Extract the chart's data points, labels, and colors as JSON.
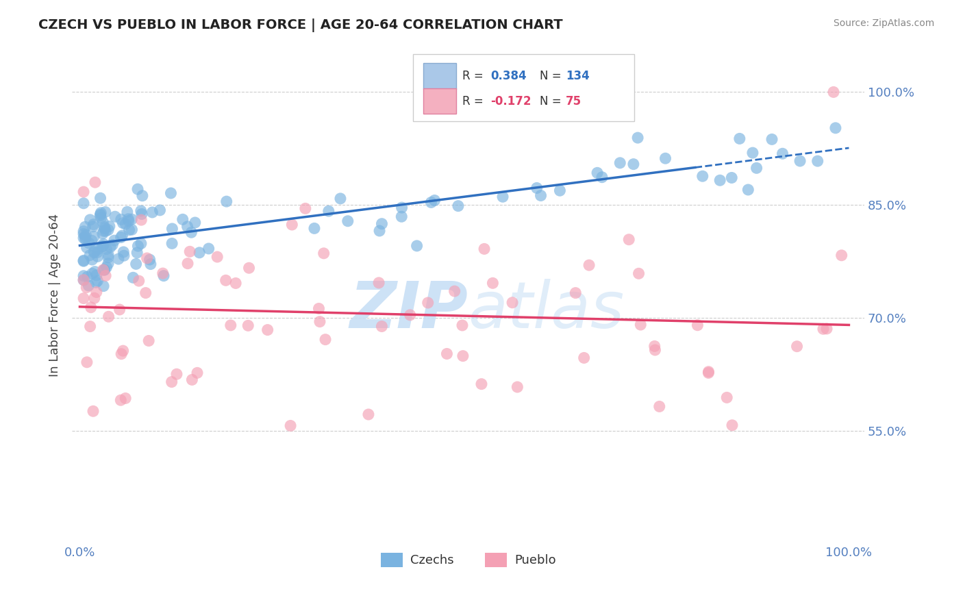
{
  "title": "CZECH VS PUEBLO IN LABOR FORCE | AGE 20-64 CORRELATION CHART",
  "source": "Source: ZipAtlas.com",
  "ylabel": "In Labor Force | Age 20-64",
  "xlim": [
    -0.01,
    1.02
  ],
  "ylim": [
    0.4,
    1.06
  ],
  "yticks": [
    0.55,
    0.7,
    0.85,
    1.0
  ],
  "ytick_labels": [
    "55.0%",
    "70.0%",
    "85.0%",
    "100.0%"
  ],
  "xtick_labels": [
    "0.0%",
    "100.0%"
  ],
  "xticks": [
    0.0,
    1.0
  ],
  "czech_R": 0.384,
  "czech_N": 134,
  "pueblo_R": -0.172,
  "pueblo_N": 75,
  "czech_color": "#7ab3e0",
  "pueblo_color": "#f4a0b4",
  "czech_line_color": "#3070c0",
  "pueblo_line_color": "#e0406a",
  "background_color": "#ffffff",
  "grid_color": "#cccccc",
  "watermark_color": "#c8dff5",
  "tick_color": "#5580c0",
  "title_color": "#222222",
  "source_color": "#888888",
  "legend_border_color": "#cccccc"
}
